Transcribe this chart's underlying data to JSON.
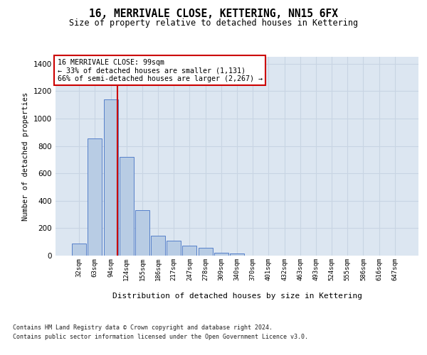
{
  "title": "16, MERRIVALE CLOSE, KETTERING, NN15 6FX",
  "subtitle": "Size of property relative to detached houses in Kettering",
  "xlabel": "Distribution of detached houses by size in Kettering",
  "ylabel": "Number of detached properties",
  "categories": [
    "32sqm",
    "63sqm",
    "94sqm",
    "124sqm",
    "155sqm",
    "186sqm",
    "217sqm",
    "247sqm",
    "278sqm",
    "309sqm",
    "340sqm",
    "370sqm",
    "401sqm",
    "432sqm",
    "463sqm",
    "493sqm",
    "524sqm",
    "555sqm",
    "586sqm",
    "616sqm",
    "647sqm"
  ],
  "values": [
    90,
    855,
    1140,
    720,
    330,
    145,
    110,
    75,
    55,
    20,
    15,
    0,
    0,
    0,
    0,
    0,
    0,
    0,
    0,
    0,
    0
  ],
  "bar_color": "#b8cce4",
  "bar_edge_color": "#4472c4",
  "grid_color": "#c8d4e3",
  "bg_color": "#dce6f1",
  "vline_color": "#cc0000",
  "vline_x": 2.43,
  "annotation_text": "16 MERRIVALE CLOSE: 99sqm\n← 33% of detached houses are smaller (1,131)\n66% of semi-detached houses are larger (2,267) →",
  "annotation_box_color": "#ffffff",
  "annotation_box_edge": "#cc0000",
  "ylim": [
    0,
    1450
  ],
  "yticks": [
    0,
    200,
    400,
    600,
    800,
    1000,
    1200,
    1400
  ],
  "footer_line1": "Contains HM Land Registry data © Crown copyright and database right 2024.",
  "footer_line2": "Contains public sector information licensed under the Open Government Licence v3.0."
}
